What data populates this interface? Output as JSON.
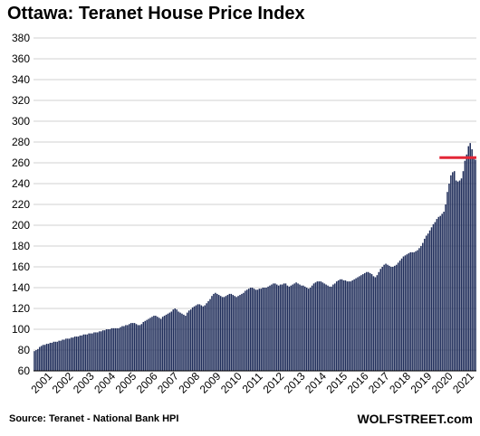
{
  "chart_data": {
    "type": "bar",
    "title": "Ottawa: Teranet House Price Index",
    "xlabel": "",
    "ylabel": "",
    "ylim": [
      60,
      380
    ],
    "yticks": [
      60,
      80,
      100,
      120,
      140,
      160,
      180,
      200,
      220,
      240,
      260,
      280,
      300,
      320,
      340,
      360,
      380
    ],
    "grid": true,
    "legend": "none",
    "bar_color": "#1f2d5a",
    "year_labels": [
      "2001",
      "2002",
      "2003",
      "2004",
      "2005",
      "2006",
      "2007",
      "2008",
      "2009",
      "2010",
      "2011",
      "2012",
      "2013",
      "2014",
      "2015",
      "2016",
      "2017",
      "2018",
      "2019",
      "2020",
      "2021"
    ],
    "annual_values": [
      [
        79,
        80,
        81,
        83,
        84,
        85,
        85,
        86,
        86,
        87,
        87,
        88
      ],
      [
        88,
        88,
        89,
        89,
        90,
        90,
        91,
        91,
        91,
        92,
        92,
        93
      ],
      [
        93,
        93,
        94,
        94,
        95,
        95,
        95,
        96,
        96,
        96,
        97,
        97
      ],
      [
        97,
        98,
        98,
        99,
        99,
        100,
        100,
        100,
        101,
        101,
        101,
        101
      ],
      [
        101,
        102,
        103,
        103,
        104,
        104,
        105,
        106,
        106,
        106,
        105,
        104
      ],
      [
        104,
        105,
        107,
        108,
        109,
        110,
        111,
        112,
        113,
        113,
        112,
        111
      ],
      [
        110,
        112,
        113,
        114,
        115,
        116,
        117,
        119,
        120,
        119,
        117,
        116
      ],
      [
        115,
        114,
        113,
        116,
        118,
        119,
        121,
        122,
        123,
        124,
        124,
        123
      ],
      [
        122,
        123,
        125,
        127,
        129,
        132,
        134,
        135,
        134,
        133,
        132,
        131
      ],
      [
        131,
        132,
        133,
        134,
        134,
        133,
        132,
        131,
        132,
        133,
        134,
        135
      ],
      [
        137,
        138,
        139,
        140,
        140,
        139,
        138,
        138,
        139,
        139,
        140,
        140
      ],
      [
        140,
        141,
        142,
        143,
        144,
        144,
        143,
        142,
        143,
        143,
        144,
        144
      ],
      [
        142,
        141,
        142,
        143,
        144,
        145,
        144,
        143,
        142,
        142,
        141,
        140
      ],
      [
        139,
        140,
        142,
        144,
        145,
        146,
        146,
        146,
        145,
        144,
        143,
        142
      ],
      [
        141,
        141,
        143,
        144,
        146,
        147,
        148,
        148,
        147,
        147,
        146,
        146
      ],
      [
        146,
        147,
        148,
        149,
        150,
        151,
        152,
        153,
        154,
        155,
        155,
        154
      ],
      [
        153,
        151,
        150,
        152,
        155,
        158,
        160,
        162,
        163,
        162,
        161,
        160
      ],
      [
        160,
        161,
        162,
        164,
        166,
        168,
        170,
        171,
        172,
        173,
        174,
        174
      ],
      [
        174,
        175,
        176,
        178,
        180,
        183,
        187,
        190,
        192,
        195,
        198,
        201
      ],
      [
        203,
        206,
        208,
        209,
        211,
        213,
        220,
        232,
        240,
        248,
        251,
        252
      ],
      [
        243,
        242,
        243,
        245,
        252,
        262,
        268,
        276,
        279,
        273,
        266,
        263
      ]
    ],
    "reference_line": {
      "value": 265,
      "color": "#e32636",
      "from": "2020-04",
      "to": "2021-12"
    }
  },
  "footer": {
    "source": "Source: Teranet - National Bank HPI",
    "brand": "WOLFSTREET.com"
  }
}
